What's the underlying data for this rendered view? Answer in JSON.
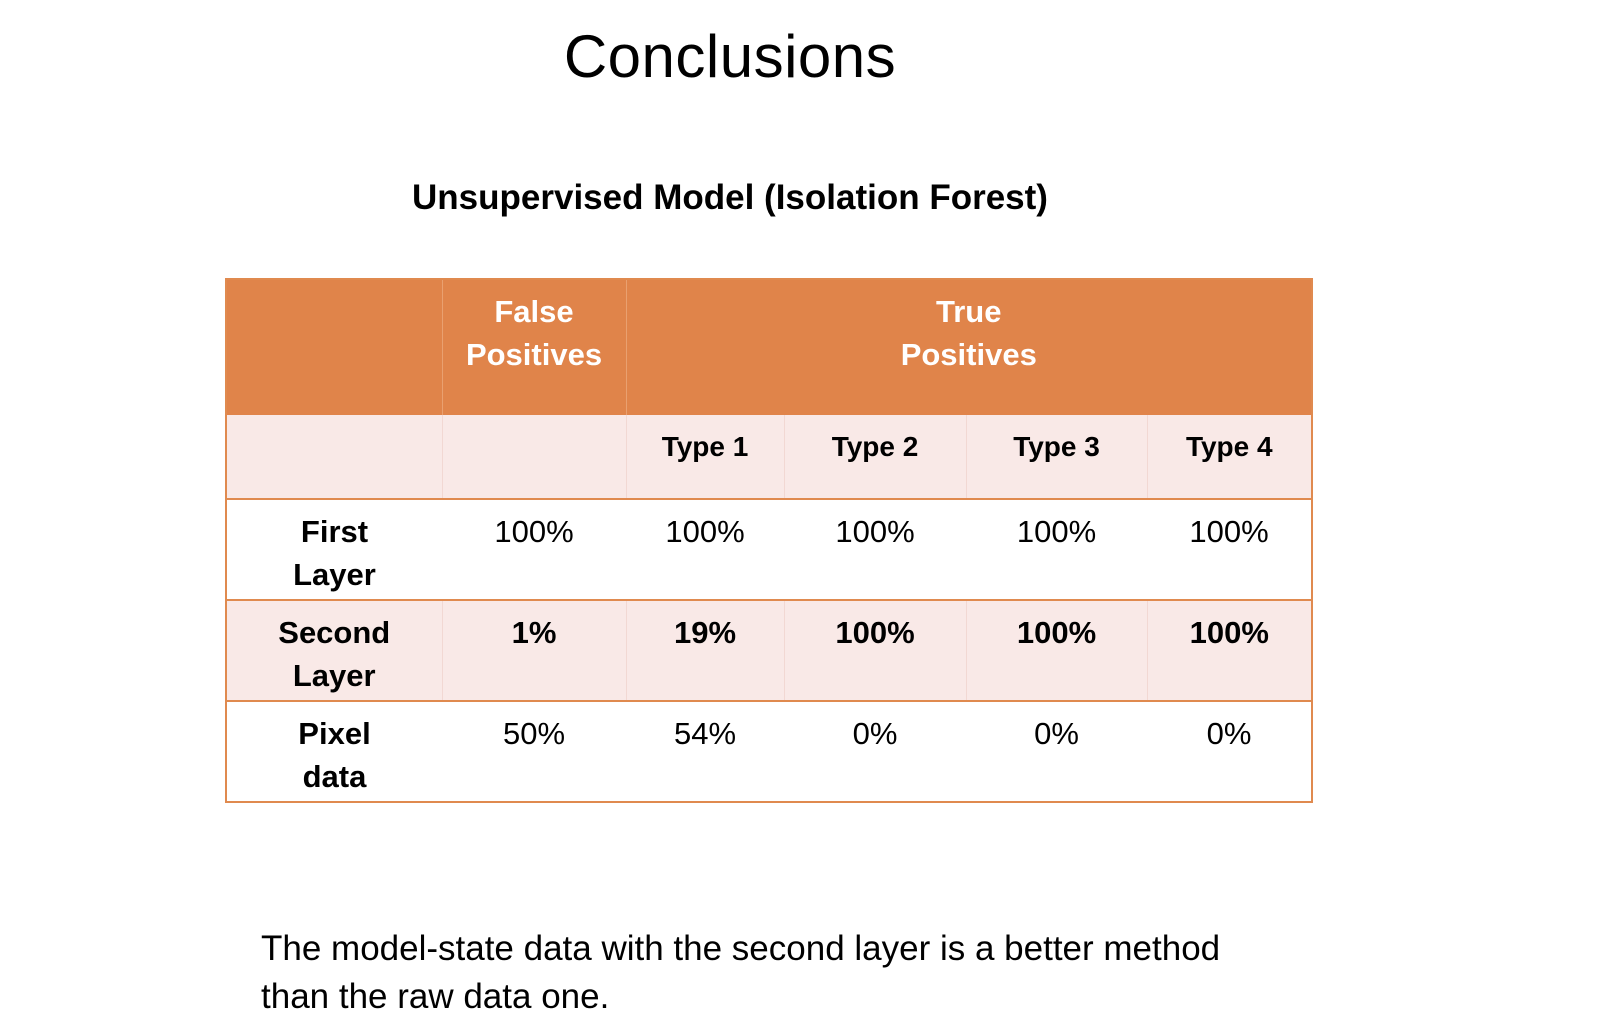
{
  "slide": {
    "title": "Conclusions",
    "table_title": "Unsupervised Model (Isolation Forest)",
    "conclusion_line1": "The model-state data with the second layer is a better method",
    "conclusion_line2": "than the raw data one."
  },
  "table": {
    "header": {
      "corner": "",
      "false_positives_line1": "False",
      "false_positives_line2": "Positives",
      "true_positives_line1": "True",
      "true_positives_line2": "Positives"
    },
    "subheader": [
      "",
      "",
      "Type 1",
      "Type 2",
      "Type 3",
      "Type 4"
    ],
    "rows": [
      {
        "label_line1": "First",
        "label_line2": "Layer",
        "values": [
          "100%",
          "100%",
          "100%",
          "100%",
          "100%"
        ]
      },
      {
        "label_line1": "Second",
        "label_line2": "Layer",
        "values": [
          "1%",
          "19%",
          "100%",
          "100%",
          "100%"
        ]
      },
      {
        "label_line1": "Pixel",
        "label_line2": "data",
        "values": [
          "50%",
          "54%",
          "0%",
          "0%",
          "0%"
        ]
      }
    ]
  },
  "colors": {
    "header_orange": "#e0844a",
    "border_orange": "#e08a4f",
    "light_row": "#f9e9e7"
  }
}
